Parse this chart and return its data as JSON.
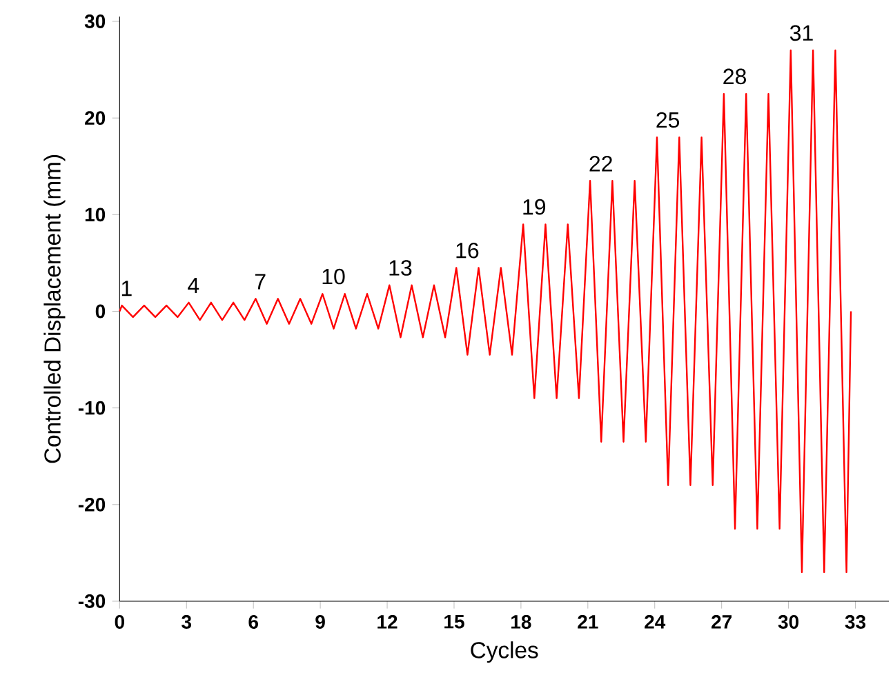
{
  "chart_data": {
    "type": "line",
    "xlabel": "Cycles",
    "ylabel": "Controlled Displacement (mm)",
    "xlim": [
      0,
      34.5
    ],
    "ylim": [
      -30,
      30.5
    ],
    "xticks": [
      0,
      3,
      6,
      9,
      12,
      15,
      18,
      21,
      24,
      27,
      30,
      33
    ],
    "yticks": [
      -30,
      -20,
      -10,
      0,
      10,
      20,
      30
    ],
    "marker": "none",
    "line_style": "solid",
    "series": [
      {
        "color": "#ff0000",
        "x": [
          0,
          0.1,
          0.6,
          1.1,
          1.6,
          2.1,
          2.6,
          3.1,
          3.6,
          4.1,
          4.6,
          5.1,
          5.6,
          6.1,
          6.6,
          7.1,
          7.6,
          8.1,
          8.6,
          9.1,
          9.6,
          10.1,
          10.6,
          11.1,
          11.6,
          12.1,
          12.6,
          13.1,
          13.6,
          14.1,
          14.6,
          15.1,
          15.6,
          16.1,
          16.6,
          17.1,
          17.6,
          18.1,
          18.6,
          19.1,
          19.6,
          20.1,
          20.6,
          21.1,
          21.6,
          22.1,
          22.6,
          23.1,
          23.6,
          24.1,
          24.6,
          25.1,
          25.6,
          26.1,
          26.6,
          27.1,
          27.6,
          28.1,
          28.6,
          29.1,
          29.6,
          30.1,
          30.6,
          31.1,
          31.6,
          32.1,
          32.6,
          32.8
        ],
        "values": [
          0,
          0.6,
          -0.6,
          0.6,
          -0.6,
          0.6,
          -0.6,
          0.9,
          -0.9,
          0.9,
          -0.9,
          0.9,
          -0.9,
          1.3,
          -1.3,
          1.3,
          -1.3,
          1.3,
          -1.3,
          1.8,
          -1.8,
          1.8,
          -1.8,
          1.8,
          -1.8,
          2.7,
          -2.7,
          2.7,
          -2.7,
          2.7,
          -2.7,
          4.5,
          -4.5,
          4.5,
          -4.5,
          4.5,
          -4.5,
          9,
          -9,
          9,
          -9,
          9,
          -9,
          13.5,
          -13.5,
          13.5,
          -13.5,
          13.5,
          -13.5,
          18,
          -18,
          18,
          -18,
          18,
          -18,
          22.5,
          -22.5,
          22.5,
          -22.5,
          22.5,
          -22.5,
          27,
          -27,
          27,
          -27,
          27,
          -27,
          0
        ]
      }
    ],
    "annotations": [
      {
        "text": "1",
        "x": 0.1,
        "y": 0.6
      },
      {
        "text": "4",
        "x": 3.1,
        "y": 0.9
      },
      {
        "text": "7",
        "x": 6.1,
        "y": 1.3
      },
      {
        "text": "10",
        "x": 9.1,
        "y": 1.8
      },
      {
        "text": "13",
        "x": 12.1,
        "y": 2.7
      },
      {
        "text": "16",
        "x": 15.1,
        "y": 4.5
      },
      {
        "text": "19",
        "x": 18.1,
        "y": 9
      },
      {
        "text": "22",
        "x": 21.1,
        "y": 13.5
      },
      {
        "text": "25",
        "x": 24.1,
        "y": 18
      },
      {
        "text": "28",
        "x": 27.1,
        "y": 22.5
      },
      {
        "text": "31",
        "x": 30.1,
        "y": 27
      }
    ]
  }
}
